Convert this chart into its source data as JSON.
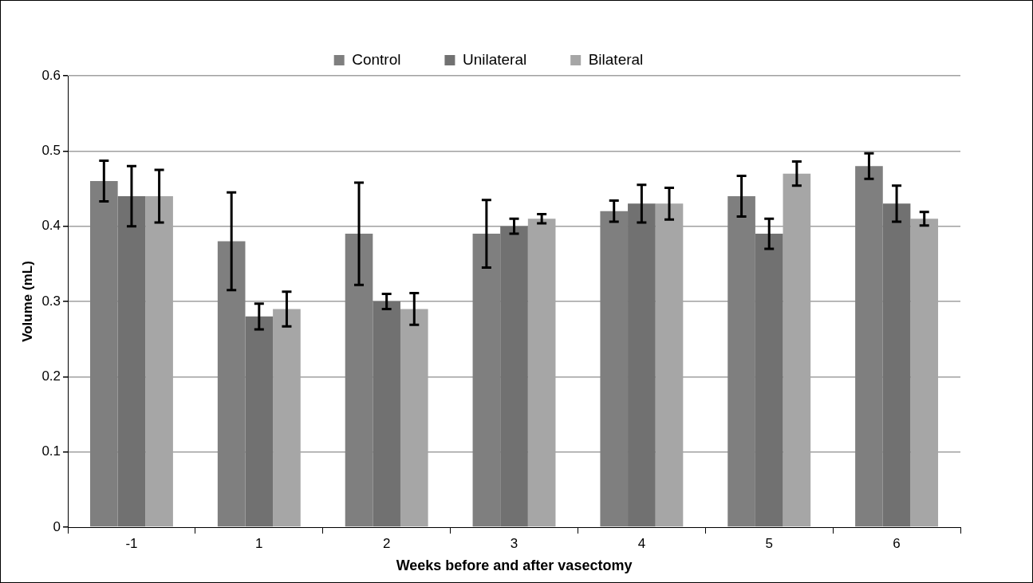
{
  "chart_data": {
    "type": "bar",
    "xlabel": "Weeks before and after vasectomy",
    "ylabel": "Volume (mL)",
    "categories": [
      "-1",
      "1",
      "2",
      "3",
      "4",
      "5",
      "6"
    ],
    "series": [
      {
        "name": "Control",
        "color": "#7f7f7f",
        "values": [
          0.46,
          0.38,
          0.39,
          0.39,
          0.42,
          0.44,
          0.48
        ],
        "errors": [
          0.027,
          0.065,
          0.068,
          0.045,
          0.014,
          0.027,
          0.017
        ]
      },
      {
        "name": "Unilateral",
        "color": "#717171",
        "values": [
          0.44,
          0.28,
          0.3,
          0.4,
          0.43,
          0.39,
          0.43
        ],
        "errors": [
          0.04,
          0.017,
          0.01,
          0.01,
          0.025,
          0.02,
          0.024
        ]
      },
      {
        "name": "Bilateral",
        "color": "#a6a6a6",
        "values": [
          0.44,
          0.29,
          0.29,
          0.41,
          0.43,
          0.47,
          0.41
        ],
        "errors": [
          0.035,
          0.023,
          0.021,
          0.006,
          0.021,
          0.016,
          0.009
        ]
      }
    ],
    "ylim": [
      0,
      0.6
    ],
    "yticks": [
      0,
      0.1,
      0.2,
      0.3,
      0.4,
      0.5,
      0.6
    ],
    "grid": "y",
    "legend": "top"
  }
}
